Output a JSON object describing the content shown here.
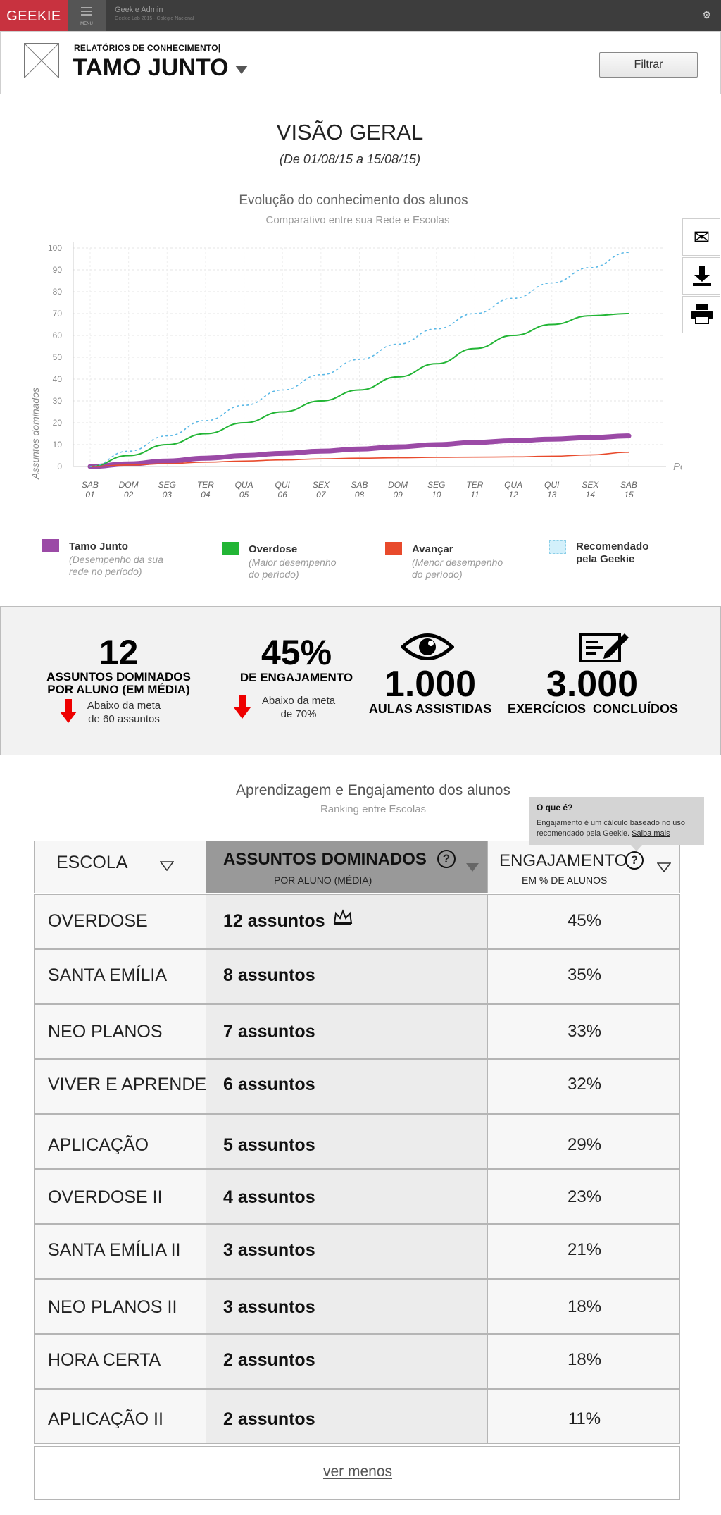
{
  "topbar": {
    "logo": "GEEKIE",
    "menu_label": "MENU",
    "admin_title": "Geekie Admin",
    "admin_subtitle": "Geekie Lab 2015 - Colégio Nacional"
  },
  "header": {
    "eyebrow": "RELATÓRIOS DE CONHECIMENTO|",
    "school_name": "TAMO JUNTO",
    "filter_label": "Filtrar"
  },
  "overview": {
    "title": "VISÃO GERAL",
    "date_range": "(De 01/08/15 a 15/08/15)"
  },
  "chart_data": {
    "type": "line",
    "title": "Evolução do conhecimento dos alunos",
    "subtitle": "Comparativo entre sua Rede e Escolas",
    "ylabel": "Assuntos dominados",
    "xlabel": "Período",
    "ylim": [
      0,
      100
    ],
    "yticks": [
      0,
      10,
      20,
      30,
      40,
      50,
      60,
      70,
      80,
      90,
      100
    ],
    "categories": [
      {
        "day": "SAB",
        "num": "01"
      },
      {
        "day": "DOM",
        "num": "02"
      },
      {
        "day": "SEG",
        "num": "03"
      },
      {
        "day": "TER",
        "num": "04"
      },
      {
        "day": "QUA",
        "num": "05"
      },
      {
        "day": "QUI",
        "num": "06"
      },
      {
        "day": "SEX",
        "num": "07"
      },
      {
        "day": "SAB",
        "num": "08"
      },
      {
        "day": "DOM",
        "num": "09"
      },
      {
        "day": "SEG",
        "num": "10"
      },
      {
        "day": "TER",
        "num": "11"
      },
      {
        "day": "QUA",
        "num": "12"
      },
      {
        "day": "QUI",
        "num": "13"
      },
      {
        "day": "SEX",
        "num": "14"
      },
      {
        "day": "SAB",
        "num": "15"
      }
    ],
    "grid": true,
    "series": [
      {
        "name": "Tamo Junto",
        "color": "#9b4aa6",
        "values": [
          0,
          1.2,
          2.5,
          3.8,
          5,
          6,
          7,
          8,
          9,
          10,
          11,
          11.8,
          12.5,
          13.2,
          14
        ]
      },
      {
        "name": "Overdose",
        "color": "#22b535",
        "values": [
          0,
          5,
          10,
          15,
          20,
          25,
          30,
          35,
          41,
          47,
          54,
          60,
          65,
          69,
          70
        ]
      },
      {
        "name": "Avançar",
        "color": "#e84a2c",
        "values": [
          0,
          0.7,
          1.3,
          2,
          2.5,
          3,
          3.5,
          3.8,
          4,
          4.2,
          4.3,
          4.4,
          4.7,
          5.3,
          6.5
        ]
      },
      {
        "name": "Recomendado pela Geekie",
        "color": "#5ab8e6",
        "dashed": true,
        "values": [
          0,
          7,
          14,
          21,
          28,
          35,
          42,
          49,
          56,
          63,
          70,
          77,
          84,
          91,
          98
        ]
      }
    ]
  },
  "legend": [
    {
      "name": "Tamo Junto",
      "desc": "(Desempenho da sua rede no período)",
      "color": "#9b4aa6"
    },
    {
      "name": "Overdose",
      "desc": "(Maior desempenho do período)",
      "color": "#22b535"
    },
    {
      "name": "Avançar",
      "desc": "(Menor desempenho do período)",
      "color": "#e84a2c"
    },
    {
      "name": "Recomendado pela Geekie",
      "desc": "",
      "color": "#d3f0fb"
    }
  ],
  "kpis": {
    "subjects": {
      "value": "12",
      "label_line1": "ASSUNTOS DOMINADOS",
      "label_line2": "POR ALUNO (EM MÉDIA)",
      "note_line1": "Abaixo da meta",
      "note_line2": "de 60 assuntos"
    },
    "engagement": {
      "value": "45%",
      "label": "DE ENGAJAMENTO",
      "note_line1": "Abaixo da meta",
      "note_line2": "de 70%"
    },
    "lessons": {
      "value": "1.000",
      "label": "AULAS ASSISTIDAS",
      "icon": "eye-icon"
    },
    "exercises": {
      "value": "3.000",
      "label": "EXERCÍCIOS  CONCLUÍDOS",
      "icon": "exercise-icon"
    }
  },
  "ranking": {
    "title": "Aprendizagem e Engajamento dos alunos",
    "subtitle": "Ranking entre Escolas",
    "tooltip_title": "O que é?",
    "tooltip_text": "Engajamento é um cálculo baseado no uso recomendado pela Geekie.",
    "tooltip_link": "Saiba mais",
    "col_school": "ESCOLA",
    "col_subjects": "ASSUNTOS DOMINADOS",
    "col_subjects_sub": "POR ALUNO (MÉDIA)",
    "col_engagement": "ENGAJAMENTO",
    "col_engagement_sub": "EM % DE ALUNOS",
    "rows": [
      {
        "school": "OVERDOSE",
        "subjects": "12 assuntos",
        "engagement": "45%",
        "crown": true
      },
      {
        "school": "SANTA EMÍLIA",
        "subjects": "8 assuntos",
        "engagement": "35%"
      },
      {
        "school": "NEO PLANOS",
        "subjects": "7 assuntos",
        "engagement": "33%"
      },
      {
        "school": "VIVER E APRENDER",
        "subjects": "6 assuntos",
        "engagement": "32%"
      },
      {
        "school": "APLICAÇÃO",
        "subjects": "5 assuntos",
        "engagement": "29%"
      },
      {
        "school": "OVERDOSE II",
        "subjects": "4 assuntos",
        "engagement": "23%"
      },
      {
        "school": "SANTA EMÍLIA II",
        "subjects": "3 assuntos",
        "engagement": "21%"
      },
      {
        "school": "NEO PLANOS II",
        "subjects": "3 assuntos",
        "engagement": "18%"
      },
      {
        "school": "HORA CERTA",
        "subjects": "2 assuntos",
        "engagement": "18%"
      },
      {
        "school": "APLICAÇÃO II",
        "subjects": "2 assuntos",
        "engagement": "11%"
      }
    ],
    "show_less": "ver menos"
  }
}
